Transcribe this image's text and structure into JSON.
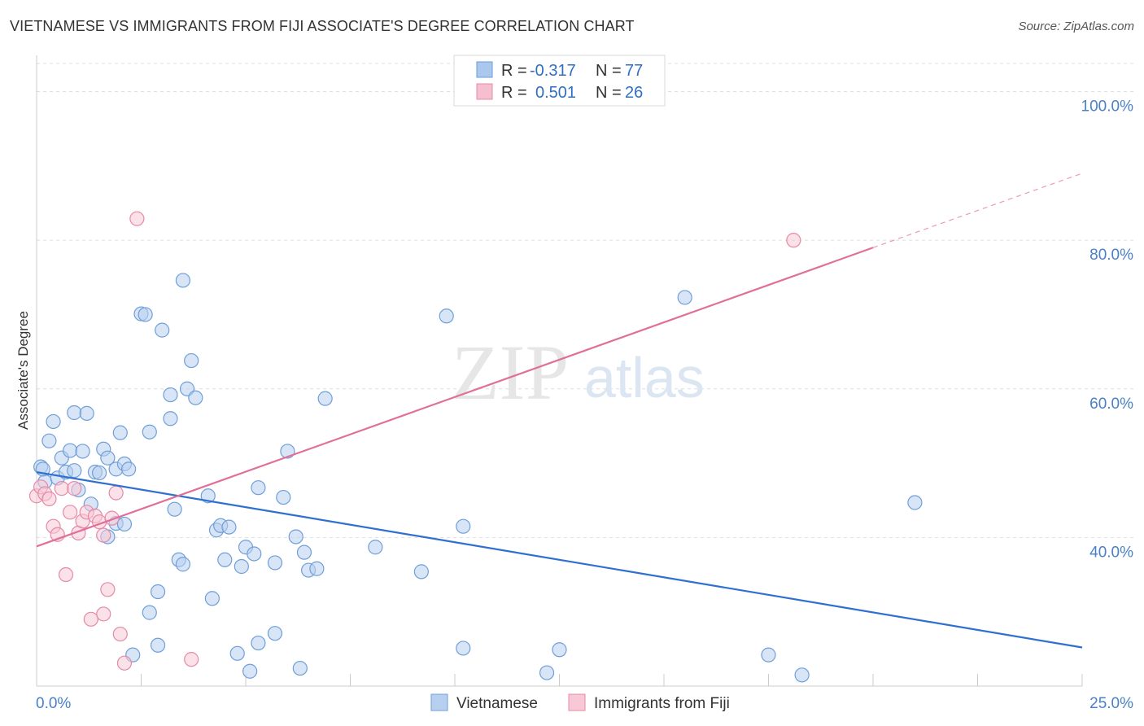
{
  "title": "VIETNAMESE VS IMMIGRANTS FROM FIJI ASSOCIATE'S DEGREE CORRELATION CHART",
  "source": "Source: ZipAtlas.com",
  "watermark": {
    "zip": "ZIP",
    "atlas": "atlas"
  },
  "legend": {
    "rows": [
      {
        "r_label": "R =",
        "r_value": "-0.317",
        "n_label": "N =",
        "n_value": "77",
        "color": "#aac8ee",
        "stroke": "#6a9bd8"
      },
      {
        "r_label": "R =",
        "r_value": "0.501",
        "n_label": "N =",
        "n_value": "26",
        "color": "#f6bfd0",
        "stroke": "#e58aa8"
      }
    ]
  },
  "colors": {
    "vietnamese_fill": "#b8d0f0",
    "vietnamese_stroke": "#6f9fd8",
    "vietnamese_line": "#2f6fd0",
    "fiji_fill": "#f8c8d6",
    "fiji_stroke": "#e58aa8",
    "fiji_line": "#e0709a",
    "grid": "#dddddd",
    "tick_label": "#4a80c8"
  },
  "chart_data": {
    "type": "scatter",
    "title": "VIETNAMESE VS IMMIGRANTS FROM FIJI ASSOCIATE'S DEGREE CORRELATION CHART",
    "xlabel": "",
    "ylabel": "Associate's Degree",
    "xlim": [
      0,
      25
    ],
    "ylim": [
      20,
      104
    ],
    "x_tick_labels": [
      "0.0%",
      "25.0%"
    ],
    "y_ticks": [
      40,
      60,
      80,
      100
    ],
    "y_tick_labels": [
      "40.0%",
      "60.0%",
      "80.0%",
      "100.0%"
    ],
    "grid": true,
    "legend_position": "bottom",
    "series": [
      {
        "name": "Vietnamese",
        "r": -0.317,
        "n": 77,
        "trend": {
          "x": [
            0,
            25
          ],
          "y": [
            48.8,
            25.2
          ]
        },
        "points": [
          [
            0.1,
            49.5
          ],
          [
            0.2,
            47.5
          ],
          [
            0.3,
            53.0
          ],
          [
            0.4,
            55.6
          ],
          [
            0.5,
            48.0
          ],
          [
            0.6,
            50.7
          ],
          [
            0.7,
            48.8
          ],
          [
            0.8,
            51.7
          ],
          [
            0.9,
            49.0
          ],
          [
            0.9,
            56.8
          ],
          [
            1.0,
            46.4
          ],
          [
            1.1,
            51.6
          ],
          [
            1.2,
            56.7
          ],
          [
            1.3,
            44.5
          ],
          [
            1.4,
            48.8
          ],
          [
            1.5,
            48.7
          ],
          [
            1.6,
            51.9
          ],
          [
            1.7,
            50.7
          ],
          [
            1.7,
            40.1
          ],
          [
            1.9,
            49.2
          ],
          [
            1.9,
            41.9
          ],
          [
            2.0,
            54.1
          ],
          [
            2.1,
            49.9
          ],
          [
            2.1,
            41.8
          ],
          [
            2.2,
            49.2
          ],
          [
            2.3,
            24.2
          ],
          [
            2.5,
            70.1
          ],
          [
            2.6,
            70.0
          ],
          [
            2.7,
            29.9
          ],
          [
            2.7,
            54.2
          ],
          [
            2.9,
            32.7
          ],
          [
            2.9,
            25.5
          ],
          [
            3.0,
            67.9
          ],
          [
            3.2,
            59.2
          ],
          [
            3.2,
            56.0
          ],
          [
            3.3,
            43.8
          ],
          [
            3.4,
            37.0
          ],
          [
            3.5,
            36.4
          ],
          [
            3.5,
            74.6
          ],
          [
            3.6,
            60.0
          ],
          [
            3.7,
            63.8
          ],
          [
            3.8,
            58.8
          ],
          [
            4.1,
            45.6
          ],
          [
            4.2,
            31.8
          ],
          [
            4.3,
            41.0
          ],
          [
            4.4,
            41.6
          ],
          [
            4.5,
            37.0
          ],
          [
            4.6,
            41.4
          ],
          [
            4.8,
            24.4
          ],
          [
            4.9,
            36.1
          ],
          [
            5.0,
            38.7
          ],
          [
            5.1,
            22.0
          ],
          [
            5.2,
            37.8
          ],
          [
            5.3,
            46.7
          ],
          [
            5.3,
            25.8
          ],
          [
            5.7,
            36.6
          ],
          [
            5.7,
            27.1
          ],
          [
            5.9,
            45.4
          ],
          [
            6.0,
            51.6
          ],
          [
            6.2,
            40.1
          ],
          [
            6.3,
            22.4
          ],
          [
            6.4,
            38.0
          ],
          [
            6.5,
            35.6
          ],
          [
            6.7,
            35.8
          ],
          [
            6.9,
            58.7
          ],
          [
            8.1,
            38.7
          ],
          [
            9.2,
            35.4
          ],
          [
            9.8,
            69.8
          ],
          [
            10.2,
            25.1
          ],
          [
            10.2,
            41.5
          ],
          [
            12.2,
            21.8
          ],
          [
            12.5,
            24.9
          ],
          [
            15.5,
            72.3
          ],
          [
            17.5,
            24.2
          ],
          [
            18.3,
            21.5
          ],
          [
            21.0,
            44.7
          ],
          [
            0.15,
            49.2
          ]
        ]
      },
      {
        "name": "Immigrants from Fiji",
        "r": 0.501,
        "n": 26,
        "trend": {
          "x": [
            0,
            20
          ],
          "y": [
            38.8,
            79.0
          ]
        },
        "trend_dashed": {
          "x": [
            20,
            25
          ],
          "y": [
            79.0,
            89.0
          ]
        },
        "points": [
          [
            0.0,
            45.6
          ],
          [
            0.1,
            46.8
          ],
          [
            0.2,
            45.9
          ],
          [
            0.3,
            45.2
          ],
          [
            0.4,
            41.5
          ],
          [
            0.5,
            40.4
          ],
          [
            0.6,
            46.6
          ],
          [
            0.7,
            35.0
          ],
          [
            0.8,
            43.4
          ],
          [
            0.9,
            46.6
          ],
          [
            1.0,
            40.6
          ],
          [
            1.1,
            42.2
          ],
          [
            1.2,
            43.4
          ],
          [
            1.3,
            29.0
          ],
          [
            1.4,
            42.9
          ],
          [
            1.5,
            42.1
          ],
          [
            1.6,
            40.3
          ],
          [
            1.6,
            29.7
          ],
          [
            1.7,
            33.0
          ],
          [
            1.8,
            42.6
          ],
          [
            1.9,
            46.0
          ],
          [
            2.0,
            27.0
          ],
          [
            2.1,
            23.1
          ],
          [
            2.4,
            82.9
          ],
          [
            3.7,
            23.6
          ],
          [
            18.1,
            80.0
          ]
        ]
      }
    ]
  },
  "bottom_legend": [
    {
      "label": "Vietnamese"
    },
    {
      "label": "Immigrants from Fiji"
    }
  ]
}
